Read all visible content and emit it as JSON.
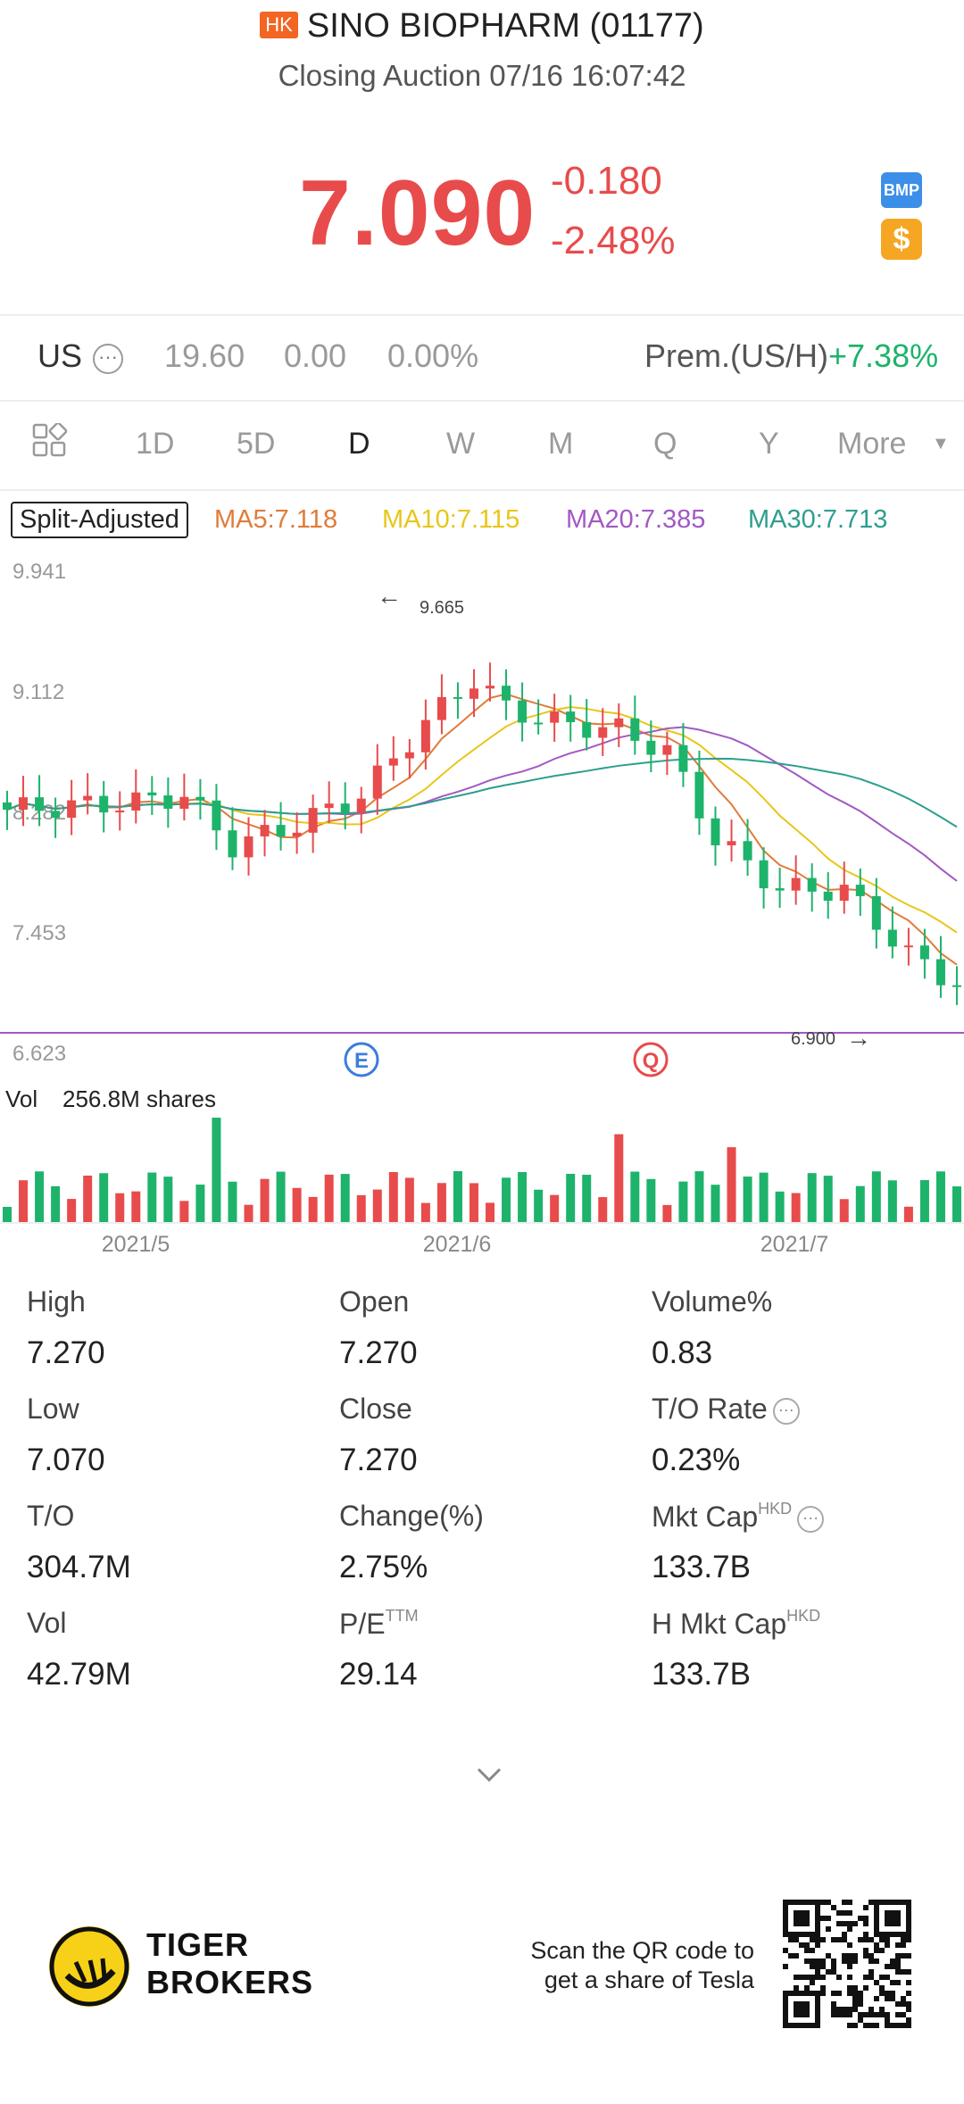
{
  "header": {
    "market_badge": "HK",
    "title": "SINO BIOPHARM (01177)",
    "subtitle": "Closing Auction 07/16 16:07:42"
  },
  "quote": {
    "price": "7.090",
    "change": "-0.180",
    "change_pct": "-2.48%",
    "bmp_label": "BMP",
    "dollar_label": "$"
  },
  "us_row": {
    "label": "US",
    "price": "19.60",
    "change": "0.00",
    "change_pct": "0.00%",
    "prem_label": "Prem.(US/H)",
    "prem_value": "+7.38%"
  },
  "tabs": [
    "1D",
    "5D",
    "D",
    "W",
    "M",
    "Q",
    "Y",
    "More"
  ],
  "active_tab": "D",
  "indicators": {
    "split_label": "Split-Adjusted",
    "ma5": "MA5:7.118",
    "ma10": "MA10:7.115",
    "ma20": "MA20:7.385",
    "ma30": "MA30:7.713"
  },
  "colors": {
    "up": "#e84b4b",
    "down": "#1db36b",
    "ma5": "#e07b39",
    "ma10": "#e8c61a",
    "ma20": "#a259c4",
    "ma30": "#2e9e8e",
    "prem": "#1db36b",
    "e_marker": "#3b7ddd",
    "q_marker": "#e84b4b"
  },
  "chart_data": {
    "type": "candlestick",
    "price_ticks": [
      "9.941",
      "9.112",
      "8.282",
      "7.453",
      "6.623"
    ],
    "high_label": "9.665",
    "low_label": "6.900",
    "date_labels": [
      "2021/5",
      "2021/6",
      "2021/7"
    ],
    "markers": [
      "E",
      "Q"
    ],
    "volume_label": "Vol",
    "volume_value": "256.8M shares"
  },
  "stats": [
    {
      "label": "High",
      "value": "7.270"
    },
    {
      "label": "Open",
      "value": "7.270"
    },
    {
      "label": "Volume%",
      "value": "0.83"
    },
    {
      "label": "Low",
      "value": "7.070"
    },
    {
      "label": "Close",
      "value": "7.270"
    },
    {
      "label": "T/O Rate",
      "value": "0.23%"
    },
    {
      "label": "T/O",
      "value": "304.7M"
    },
    {
      "label": "Change(%)",
      "value": "2.75%"
    },
    {
      "label": "Mkt Cap",
      "sup": "HKD",
      "value": "133.7B"
    },
    {
      "label": "Vol",
      "value": "42.79M"
    },
    {
      "label": "P/E",
      "sup": "TTM",
      "value": "29.14"
    },
    {
      "label": "H Mkt Cap",
      "sup": "HKD",
      "value": "133.7B"
    }
  ],
  "footer": {
    "brand_line1": "TIGER",
    "brand_line2": "BROKERS",
    "scan_line1": "Scan the QR code to",
    "scan_line2": "get a share of Tesla"
  }
}
